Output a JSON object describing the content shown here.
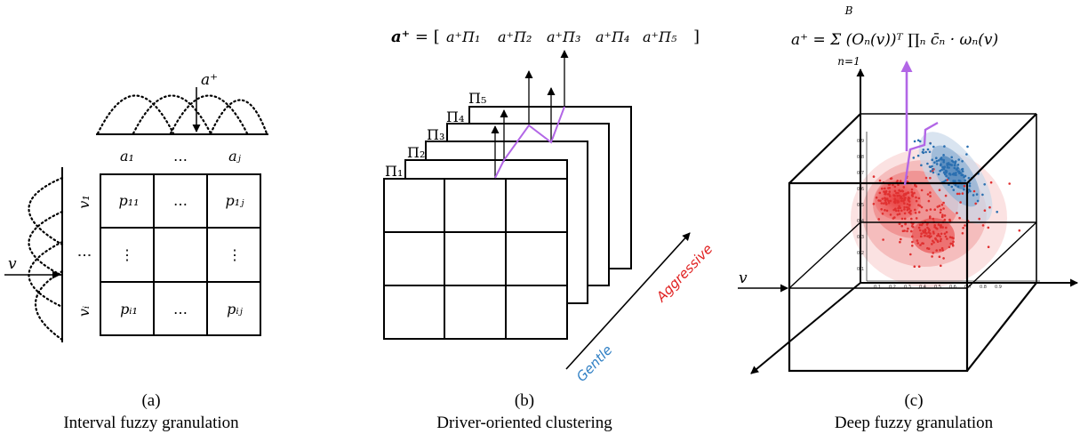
{
  "panel_a": {
    "top_labels": [
      "a₁",
      "…",
      "aⱼ"
    ],
    "side_labels": [
      "v₁",
      "⋮",
      "vᵢ"
    ],
    "cells": [
      [
        "p₁₁",
        "…",
        "p₁ⱼ"
      ],
      [
        "⋮",
        "",
        "⋮"
      ],
      [
        "pᵢ₁",
        "…",
        "pᵢⱼ"
      ]
    ],
    "input_top": "a⁺",
    "input_side": "v",
    "caption_letter": "(a)",
    "caption": "Interval fuzzy granulation"
  },
  "panel_b": {
    "formula_lhs": "a⁺",
    "formula_eq": " = [",
    "formula_terms": [
      "a⁺Π₁",
      "a⁺Π₂",
      "a⁺Π₃",
      "a⁺Π₄",
      "a⁺Π₅"
    ],
    "formula_close": "]",
    "layer_labels": [
      "Π₁",
      "Π₂",
      "Π₃",
      "Π₄",
      "Π₅"
    ],
    "gentle_label": "Gentle",
    "aggressive_label": "Aggressive",
    "caption_letter": "(b)",
    "caption": "Driver-oriented clustering"
  },
  "panel_c": {
    "formula": "a⁺ = Σ (Oₙ(v))ᵀ ∏ₙ c̄ₙ · ωₙ(v)",
    "sum_upper": "B",
    "sum_lower": "n=1",
    "input_label": "v",
    "y_ticks": [
      "0.9",
      "0.8",
      "0.7",
      "0.6",
      "0.5",
      "0.4",
      "0.3",
      "0.2",
      "0.1"
    ],
    "x_ticks": [
      "0.1",
      "0.2",
      "0.3",
      "0.4",
      "0.5",
      "0.6",
      "0.7",
      "0.8",
      "0.9"
    ],
    "caption_letter": "(c)",
    "caption": "Deep fuzzy granulation"
  },
  "colors": {
    "membership": "#000000",
    "path": "#b266e6",
    "gentle": "#2f7fc4",
    "aggressive": "#e02020",
    "red_cluster": "#e03030",
    "blue_cluster": "#2a6fb0"
  }
}
